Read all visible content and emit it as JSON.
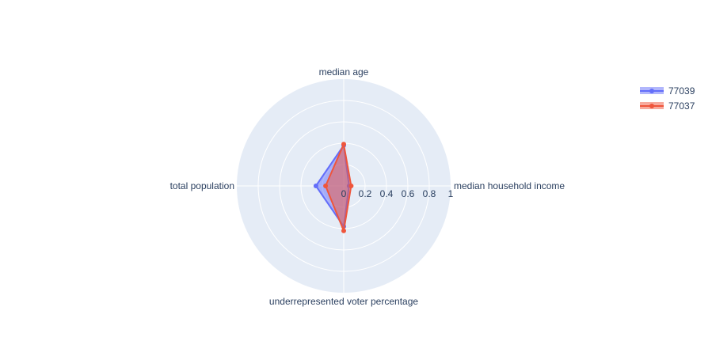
{
  "chart_data": {
    "type": "radar",
    "axes": [
      "median age",
      "median household income",
      "underrepresented voter percentage",
      "total population"
    ],
    "radial_range": [
      0,
      1
    ],
    "radial_ticks": [
      "0",
      "0.2",
      "0.4",
      "0.6",
      "0.8",
      "1"
    ],
    "grid": true,
    "legend_position": "top-right",
    "series": [
      {
        "name": "77039",
        "color": "#636efa",
        "values": [
          0.38,
          0.05,
          0.38,
          0.26
        ]
      },
      {
        "name": "77037",
        "color": "#ef553b",
        "values": [
          0.39,
          0.07,
          0.42,
          0.17
        ]
      }
    ]
  }
}
